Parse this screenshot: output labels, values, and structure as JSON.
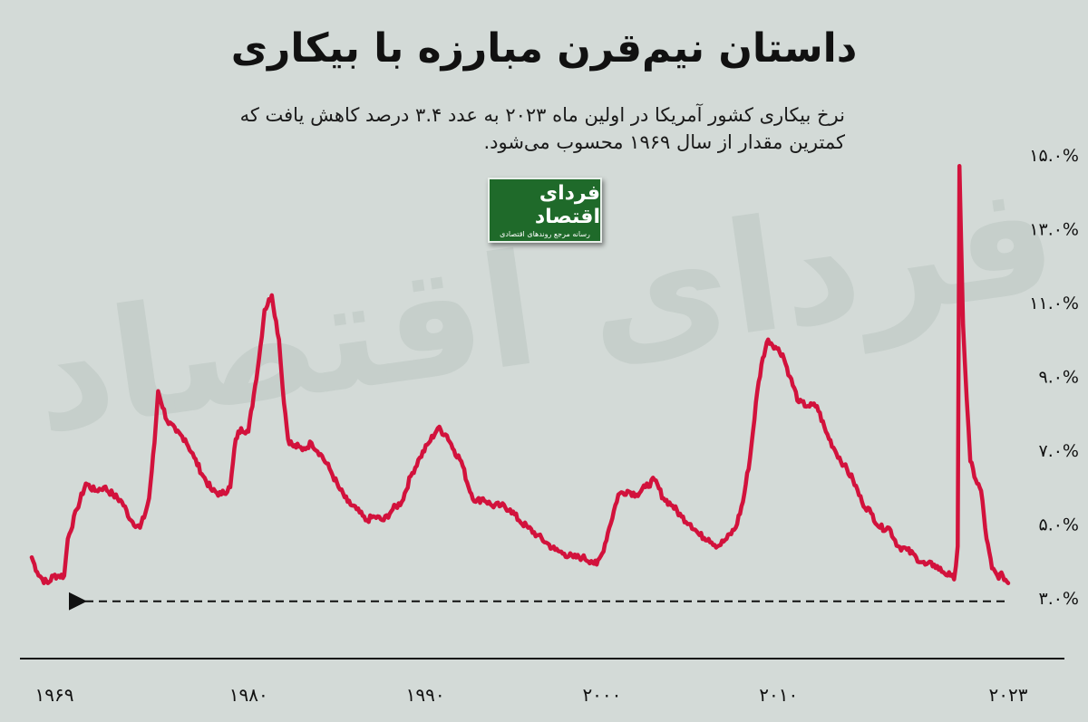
{
  "title": "داستان نیم‌قرن مبارزه با بیکاری",
  "subtitle": "نرخ بیکاری کشور آمریکا در اولین ماه ۲۰۲۳ به عدد ۳.۴ درصد کاهش یافت که کمترین مقدار از سال ۱۹۶۹ محسوب می‌شود.",
  "logo": {
    "brand": "فردای اقتصاد",
    "tagline": "رسانه مرجع روندهای اقتصادی"
  },
  "colors": {
    "background": "#d3dad7",
    "line": "#d2123c",
    "axis": "#111111",
    "logo_bg": "#1f6a2a"
  },
  "chart_data": {
    "type": "line",
    "title": "داستان نیم‌قرن مبارزه با بیکاری",
    "xlabel": "",
    "ylabel": "",
    "ylim": [
      3.0,
      15.0
    ],
    "xlim": [
      1969,
      2023.1
    ],
    "y_ticks": [
      "۳.۰%",
      "۵.۰%",
      "۷.۰%",
      "۹.۰%",
      "۱۱.۰%",
      "۱۳.۰%",
      "۱۵.۰%"
    ],
    "y_tick_values": [
      3,
      5,
      7,
      9,
      11,
      13,
      15
    ],
    "x_ticks": [
      "۱۹۶۹",
      "۱۹۸۰",
      "۱۹۹۰",
      "۲۰۰۰",
      "۲۰۱۰",
      "۲۰۲۳"
    ],
    "x_tick_values": [
      1969,
      1980,
      1990,
      2000,
      2010,
      2023
    ],
    "grid": false,
    "reference_line": {
      "y": 3.4,
      "style": "dashed-arrow"
    },
    "series": [
      {
        "x": [
          1969.0,
          1969.3,
          1969.6,
          1969.9,
          1970.2,
          1970.5,
          1970.8,
          1971.0,
          1971.5,
          1972.0,
          1972.5,
          1973.0,
          1973.5,
          1974.0,
          1974.5,
          1975.0,
          1975.3,
          1975.5,
          1975.8,
          1976.0,
          1976.5,
          1977.0,
          1977.5,
          1978.0,
          1978.5,
          1979.0,
          1979.5,
          1980.0,
          1980.3,
          1980.6,
          1981.0,
          1981.3,
          1981.6,
          1981.9,
          1982.3,
          1982.7,
          1982.9,
          1983.2,
          1983.5,
          1983.8,
          1984.0,
          1984.5,
          1985.0,
          1985.5,
          1986.0,
          1986.5,
          1987.0,
          1987.5,
          1988.0,
          1988.5,
          1989.0,
          1989.5,
          1990.0,
          1990.5,
          1991.0,
          1991.5,
          1992.0,
          1992.4,
          1992.8,
          1993.2,
          1993.6,
          1994.0,
          1994.5,
          1995.0,
          1995.5,
          1996.0,
          1996.5,
          1997.0,
          1997.5,
          1998.0,
          1998.5,
          1999.0,
          1999.5,
          2000.0,
          2000.3,
          2000.6,
          2001.0,
          2001.5,
          2002.0,
          2002.5,
          2003.0,
          2003.5,
          2004.0,
          2004.5,
          2005.0,
          2005.5,
          2006.0,
          2006.5,
          2007.0,
          2007.5,
          2008.0,
          2008.4,
          2008.8,
          2009.2,
          2009.5,
          2009.8,
          2010.2,
          2010.6,
          2011.0,
          2011.5,
          2012.0,
          2012.5,
          2013.0,
          2013.5,
          2014.0,
          2014.5,
          2015.0,
          2015.5,
          2016.0,
          2016.5,
          2017.0,
          2017.5,
          2018.0,
          2018.5,
          2019.0,
          2019.5,
          2019.9,
          2020.1,
          2020.3,
          2020.4,
          2020.6,
          2020.8,
          2021.0,
          2021.3,
          2021.6,
          2021.9,
          2022.2,
          2022.5,
          2022.8,
          2023.1
        ],
        "values": [
          4.1,
          3.7,
          3.5,
          3.4,
          3.6,
          3.6,
          3.6,
          4.6,
          5.4,
          6.1,
          5.9,
          6.0,
          5.8,
          5.6,
          5.1,
          4.9,
          5.3,
          5.7,
          7.2,
          8.6,
          7.8,
          7.5,
          7.3,
          6.8,
          6.3,
          5.9,
          5.8,
          6.0,
          7.3,
          7.6,
          7.5,
          8.5,
          9.5,
          10.8,
          11.2,
          10.0,
          8.7,
          7.3,
          7.1,
          7.1,
          7.0,
          7.2,
          6.9,
          6.5,
          6.0,
          5.6,
          5.4,
          5.1,
          5.2,
          5.1,
          5.4,
          5.6,
          6.3,
          6.8,
          7.2,
          7.6,
          7.4,
          7.0,
          6.7,
          6.0,
          5.6,
          5.7,
          5.5,
          5.5,
          5.4,
          5.1,
          4.9,
          4.7,
          4.5,
          4.3,
          4.2,
          4.1,
          4.1,
          4.0,
          3.9,
          4.2,
          4.9,
          5.8,
          5.9,
          5.8,
          6.0,
          6.2,
          5.7,
          5.5,
          5.2,
          5.0,
          4.7,
          4.6,
          4.4,
          4.6,
          4.9,
          5.6,
          6.8,
          8.6,
          9.5,
          10.0,
          9.8,
          9.6,
          9.0,
          8.3,
          8.2,
          8.2,
          7.5,
          7.0,
          6.6,
          6.2,
          5.6,
          5.3,
          4.9,
          4.9,
          4.4,
          4.3,
          4.1,
          3.9,
          3.9,
          3.7,
          3.6,
          3.5,
          4.4,
          14.7,
          10.4,
          8.4,
          6.7,
          6.2,
          5.9,
          4.6,
          3.8,
          3.6,
          3.6,
          3.4
        ]
      }
    ]
  }
}
